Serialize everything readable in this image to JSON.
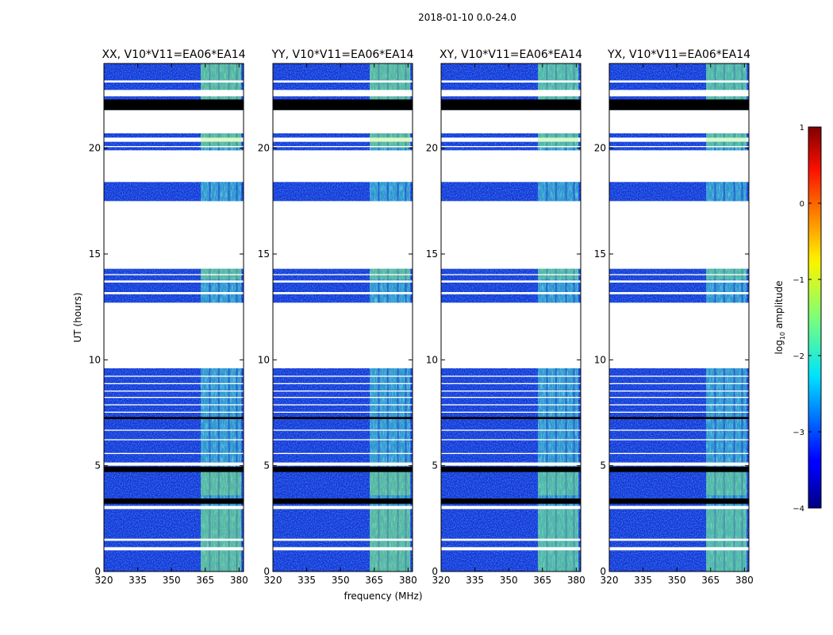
{
  "chart_data": {
    "type": "heatmap",
    "suptitle": "2018-01-10 0.0-24.0",
    "xlabel": "frequency (MHz)",
    "ylabel": "UT (hours)",
    "xlim": [
      320,
      382
    ],
    "ylim": [
      0,
      24
    ],
    "xticks": [
      320,
      335,
      350,
      365,
      380
    ],
    "yticks": [
      0,
      5,
      10,
      15,
      20
    ],
    "panels": [
      {
        "title": "XX, V10*V11=EA06*EA14"
      },
      {
        "title": "YY, V10*V11=EA06*EA14"
      },
      {
        "title": "XY, V10*V11=EA06*EA14"
      },
      {
        "title": "YX, V10*V11=EA06*EA14"
      }
    ],
    "data_time_ranges_hours": [
      [
        0,
        9.6
      ],
      [
        12.7,
        14.3
      ],
      [
        17.5,
        18.4
      ],
      [
        19.9,
        20.3
      ],
      [
        20.5,
        20.7
      ],
      [
        21.8,
        24
      ]
    ],
    "bright_band_MHz": [
      363,
      381
    ],
    "colorbar": {
      "label": "log10 amplitude",
      "label_main": "log",
      "label_sub": "10",
      "label_tail": " amplitude",
      "range": [
        -4,
        1
      ],
      "ticks": [
        -4,
        -3,
        -2,
        -1,
        0,
        1
      ],
      "tick_labels": [
        "−4",
        "−3",
        "−2",
        "−1",
        "0",
        "1"
      ]
    }
  }
}
